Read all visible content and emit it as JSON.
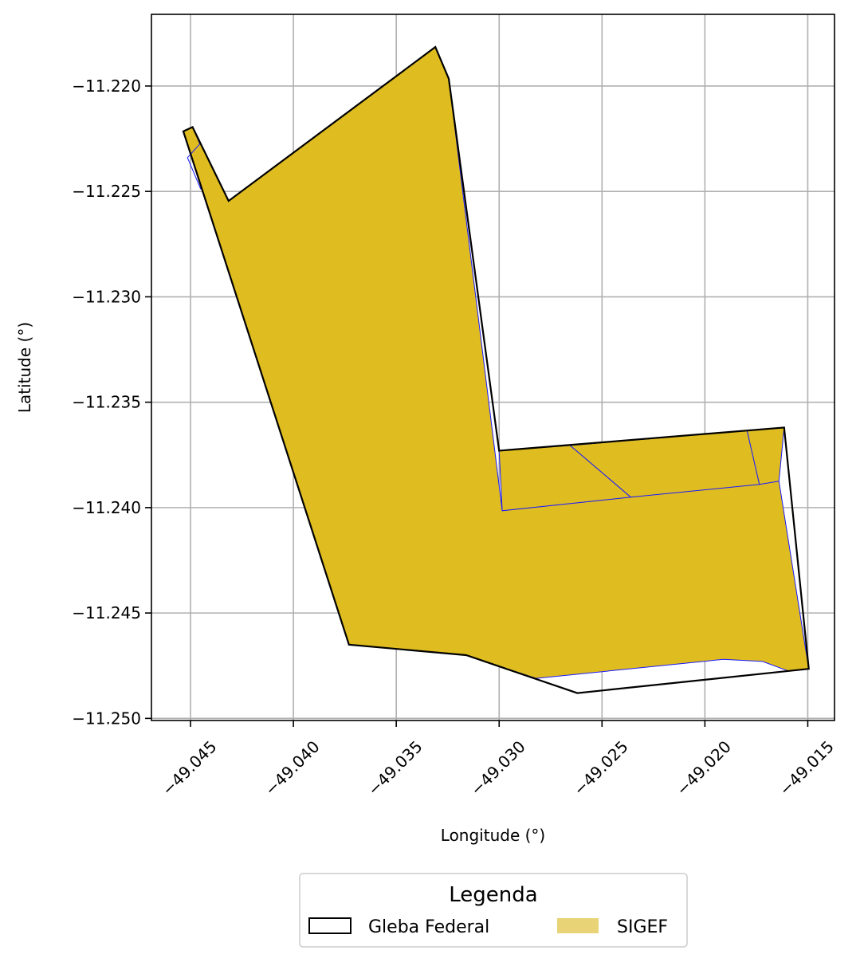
{
  "chart_data": {
    "type": "map",
    "xlabel": "Longitude (°)",
    "ylabel": "Latitude (°)",
    "xlim": [
      -49.0469,
      -49.0137
    ],
    "ylim": [
      -11.2501,
      -11.2166
    ],
    "grid": true,
    "x_ticks": [
      -49.045,
      -49.04,
      -49.035,
      -49.03,
      -49.025,
      -49.02,
      -49.015
    ],
    "x_tick_labels": [
      "−49.045",
      "−49.040",
      "−49.035",
      "−49.030",
      "−49.025",
      "−49.020",
      "−49.015"
    ],
    "y_ticks": [
      -11.22,
      -11.225,
      -11.23,
      -11.235,
      -11.24,
      -11.245,
      -11.25
    ],
    "y_tick_labels": [
      "−11.220",
      "−11.225",
      "−11.230",
      "−11.235",
      "−11.240",
      "−11.245",
      "−11.250"
    ],
    "legend": {
      "title": "Legenda",
      "placement": "bottom-center-outside",
      "entries": [
        {
          "label": "Gleba Federal",
          "type": "outline",
          "color": "#000000"
        },
        {
          "label": "SIGEF",
          "type": "fill",
          "color": "#e8d477"
        }
      ]
    },
    "colors": {
      "sigef_fill": "#dfbd20",
      "sigef_edge": "#1a1aff",
      "gleba_edge": "#000000",
      "grid": "#b0b0b0"
    },
    "gleba_federal": [
      [
        -49.04535,
        -11.22215
      ],
      [
        -49.0449,
        -11.22195
      ],
      [
        -49.04315,
        -11.22545
      ],
      [
        -49.0331,
        -11.21815
      ],
      [
        -49.03245,
        -11.21965
      ],
      [
        -49.03,
        -11.2373
      ],
      [
        -49.01615,
        -11.2362
      ],
      [
        -49.01495,
        -11.24765
      ],
      [
        -49.0262,
        -11.2488
      ],
      [
        -49.0316,
        -11.247
      ],
      [
        -49.0373,
        -11.2465
      ],
      [
        -49.04535,
        -11.22215
      ]
    ],
    "sigef_parcels": [
      [
        [
          -49.04535,
          -11.22215
        ],
        [
          -49.0449,
          -11.22195
        ],
        [
          -49.04315,
          -11.22545
        ],
        [
          -49.0331,
          -11.21815
        ],
        [
          -49.03245,
          -11.21965
        ],
        [
          -49.02985,
          -11.24015
        ],
        [
          -49.0164,
          -11.23875
        ],
        [
          -49.01495,
          -11.24765
        ],
        [
          -49.01595,
          -11.24775
        ],
        [
          -49.0172,
          -11.2473
        ],
        [
          -49.0191,
          -11.2472
        ],
        [
          -49.0282,
          -11.2481
        ],
        [
          -49.0316,
          -11.247
        ],
        [
          -49.0373,
          -11.2465
        ],
        [
          -49.04535,
          -11.22215
        ]
      ],
      [
        [
          -49.03,
          -11.2373
        ],
        [
          -49.02655,
          -11.23705
        ],
        [
          -49.0236,
          -11.2395
        ],
        [
          -49.02985,
          -11.24015
        ],
        [
          -49.03,
          -11.2373
        ]
      ],
      [
        [
          -49.02655,
          -11.23705
        ],
        [
          -49.01795,
          -11.23635
        ],
        [
          -49.01735,
          -11.2389
        ],
        [
          -49.0236,
          -11.2395
        ],
        [
          -49.02655,
          -11.23705
        ]
      ],
      [
        [
          -49.01795,
          -11.23635
        ],
        [
          -49.01615,
          -11.2362
        ],
        [
          -49.0164,
          -11.23875
        ],
        [
          -49.01735,
          -11.2389
        ],
        [
          -49.01795,
          -11.23635
        ]
      ]
    ],
    "sigef_internal_edges": [
      [
        [
          -49.0449,
          -11.22195
        ],
        [
          -49.04455,
          -11.22275
        ],
        [
          -49.04515,
          -11.2234
        ],
        [
          -49.0445,
          -11.2249
        ]
      ]
    ]
  }
}
